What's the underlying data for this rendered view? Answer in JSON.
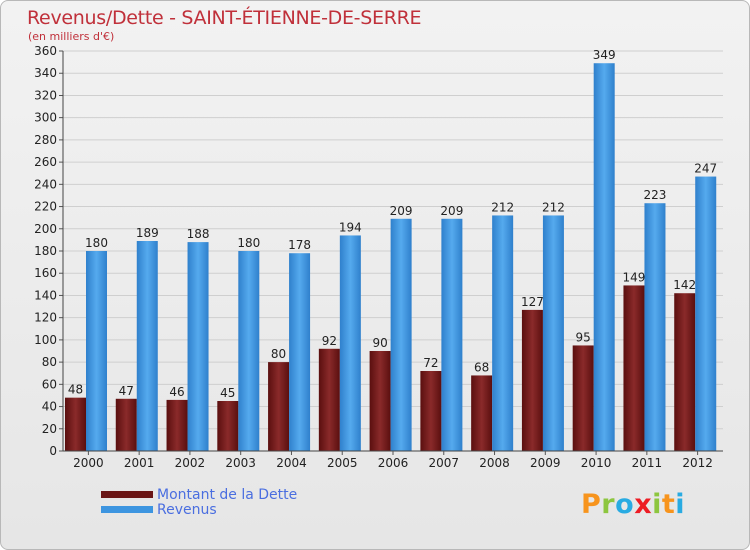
{
  "title": "Revenus/Dette - SAINT-ÉTIENNE-DE-SERRE",
  "subtitle": "(en milliers d'€)",
  "logo": {
    "letters": [
      "P",
      "r",
      "o",
      "x",
      "i",
      "t",
      "i"
    ],
    "colors": [
      "#f7941d",
      "#8dc63f",
      "#29abe2",
      "#ed1c24",
      "#8dc63f",
      "#f7941d",
      "#29abe2"
    ]
  },
  "colors": {
    "dette": "#7a1e1e",
    "revenus": "#3d95e0",
    "title": "#c0303a",
    "legend_text": "#4a6ee0"
  },
  "chart_data": {
    "type": "bar",
    "categories": [
      "2000",
      "2001",
      "2002",
      "2003",
      "2004",
      "2005",
      "2006",
      "2007",
      "2008",
      "2009",
      "2010",
      "2011",
      "2012"
    ],
    "series": [
      {
        "name": "Montant de la Dette",
        "values": [
          48,
          47,
          46,
          45,
          80,
          92,
          90,
          72,
          68,
          127,
          95,
          149,
          142
        ]
      },
      {
        "name": "Revenus",
        "values": [
          180,
          189,
          188,
          180,
          178,
          194,
          209,
          209,
          212,
          212,
          349,
          223,
          247
        ]
      }
    ],
    "ylim": [
      0,
      360
    ],
    "yticks": [
      "0",
      "20",
      "40",
      "60",
      "80",
      "100",
      "120",
      "140",
      "160",
      "180",
      "200",
      "220",
      "240",
      "260",
      "280",
      "300",
      "320",
      "340",
      "360"
    ],
    "grid": true,
    "legend": "bottom-left"
  }
}
